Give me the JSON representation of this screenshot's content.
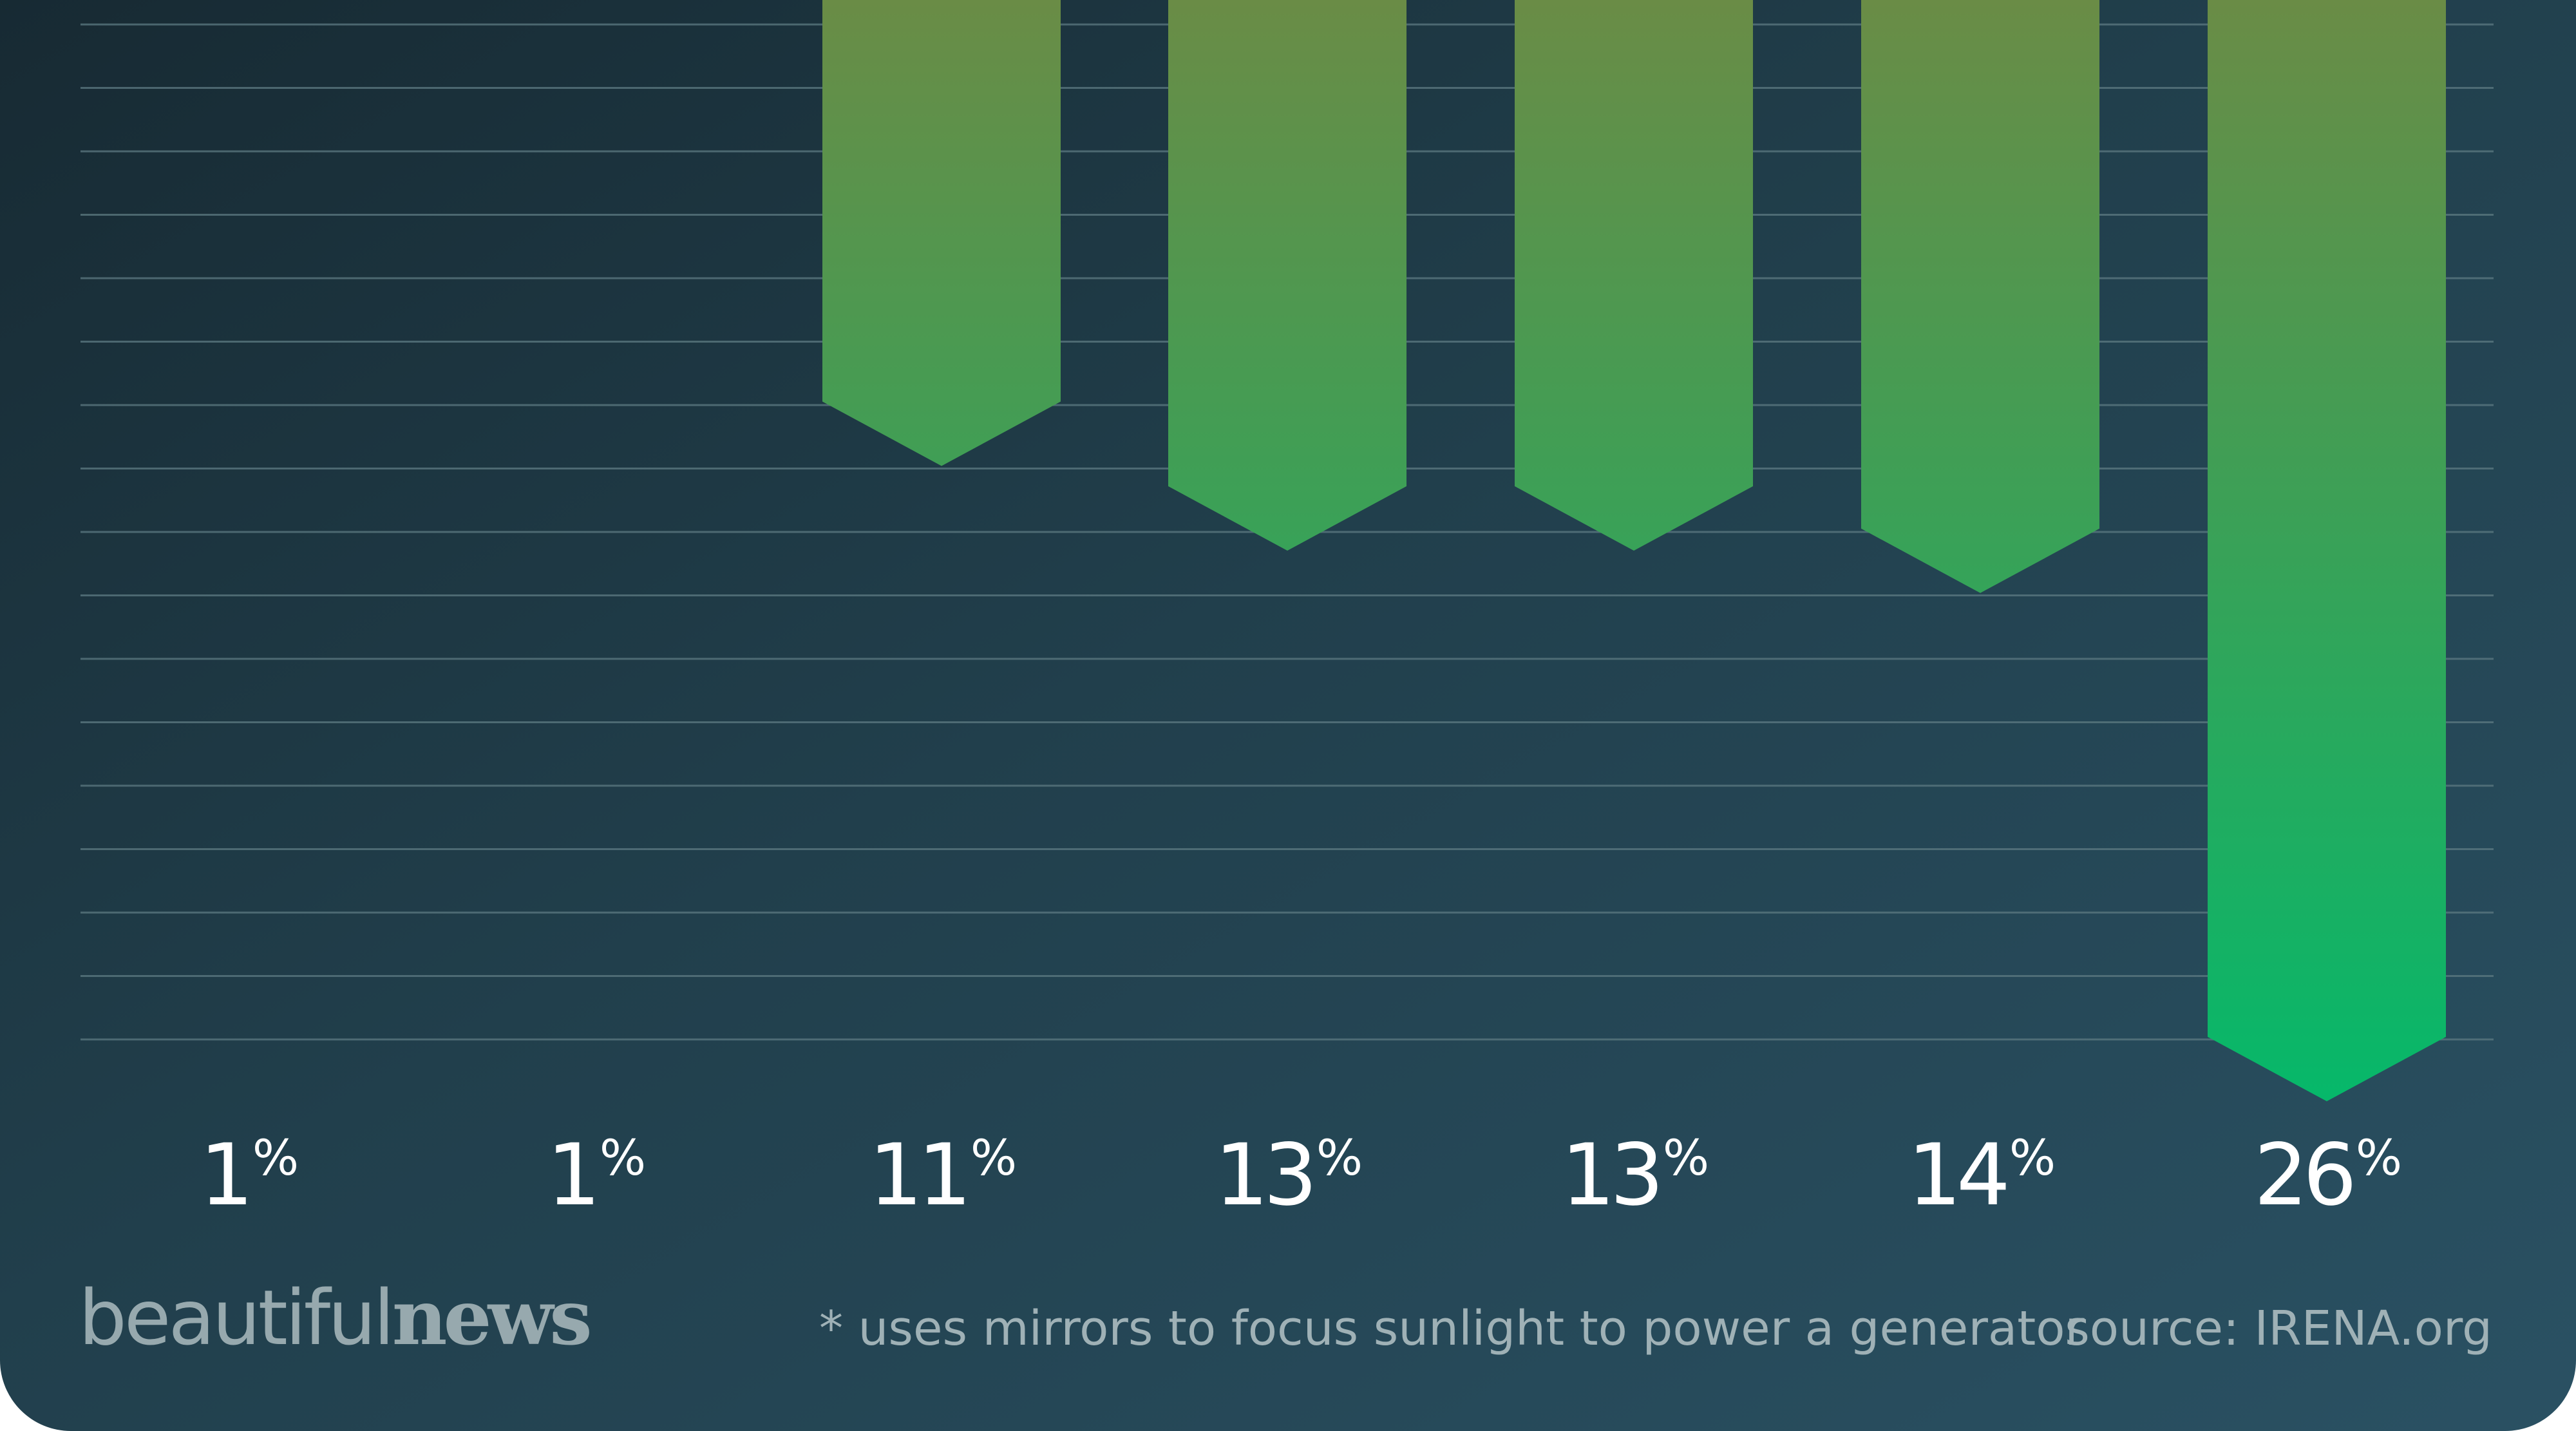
{
  "chart_data": {
    "type": "bar",
    "orientation": "downward",
    "categories": [
      "",
      "",
      "",
      "",
      "",
      "",
      ""
    ],
    "values": [
      1,
      1,
      11,
      13,
      13,
      14,
      26
    ],
    "value_labels": [
      "1",
      "1",
      "11",
      "13",
      "13",
      "14",
      "26"
    ],
    "unit": "%",
    "ylim": [
      0,
      26
    ],
    "grid": true,
    "colors": {
      "bar_top": "#6a8c46",
      "bar_bottom": "#06b86a",
      "grid": "#5d7a82",
      "label": "#ffffff"
    }
  },
  "branding": {
    "logo_light": "beautiful",
    "logo_bold": "news"
  },
  "footer": {
    "footnote": "* uses mirrors to focus sunlight to power a generator",
    "source": "source: IRENA.org"
  }
}
